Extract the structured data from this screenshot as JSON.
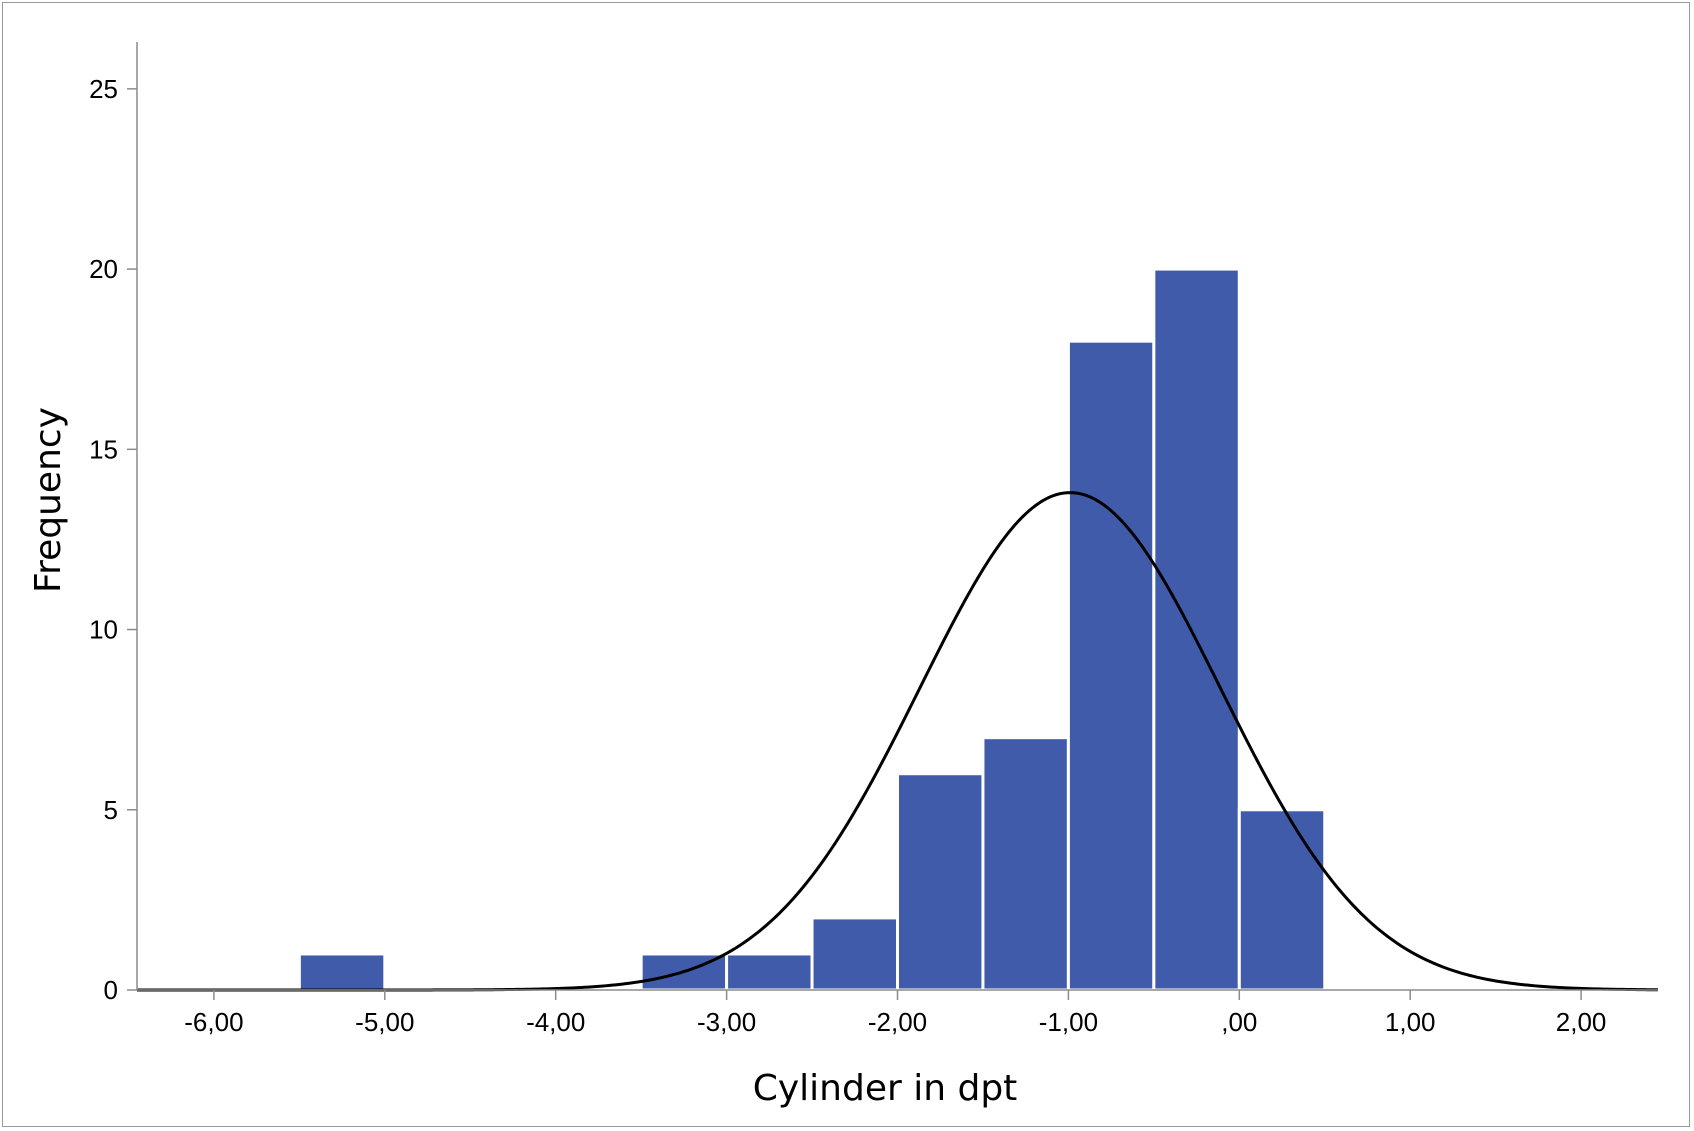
{
  "chart_data": {
    "type": "bar",
    "subtype": "histogram",
    "xlabel": "Cylinder in dpt",
    "ylabel": "Frequency",
    "xlim": [
      -6.45,
      2.45
    ],
    "ylim": [
      0,
      26.3
    ],
    "x_ticks": [
      {
        "value": -6,
        "label": "-6,00"
      },
      {
        "value": -5,
        "label": "-5,00"
      },
      {
        "value": -4,
        "label": "-4,00"
      },
      {
        "value": -3,
        "label": "-3,00"
      },
      {
        "value": -2,
        "label": "-2,00"
      },
      {
        "value": -1,
        "label": "-1,00"
      },
      {
        "value": 0,
        "label": ",00"
      },
      {
        "value": 1,
        "label": "1,00"
      },
      {
        "value": 2,
        "label": "2,00"
      }
    ],
    "y_ticks": [
      {
        "value": 0,
        "label": "0"
      },
      {
        "value": 5,
        "label": "5"
      },
      {
        "value": 10,
        "label": "10"
      },
      {
        "value": 15,
        "label": "15"
      },
      {
        "value": 20,
        "label": "20"
      },
      {
        "value": 25,
        "label": "25"
      }
    ],
    "bins": [
      {
        "start": -5.5,
        "end": -5.0,
        "count": 1
      },
      {
        "start": -5.0,
        "end": -4.5,
        "count": 0
      },
      {
        "start": -4.5,
        "end": -4.0,
        "count": 0
      },
      {
        "start": -4.0,
        "end": -3.5,
        "count": 0
      },
      {
        "start": -3.5,
        "end": -3.0,
        "count": 1
      },
      {
        "start": -3.0,
        "end": -2.5,
        "count": 1
      },
      {
        "start": -2.5,
        "end": -2.0,
        "count": 2
      },
      {
        "start": -2.0,
        "end": -1.5,
        "count": 6
      },
      {
        "start": -1.5,
        "end": -1.0,
        "count": 7
      },
      {
        "start": -1.0,
        "end": -0.5,
        "count": 18
      },
      {
        "start": -0.5,
        "end": 0.0,
        "count": 20
      },
      {
        "start": 0.0,
        "end": 0.5,
        "count": 5
      }
    ],
    "normal_curve": {
      "mean": -0.99,
      "std_dev": 0.88,
      "n": 61,
      "bin_width": 0.5,
      "peak": 13.8
    },
    "grid": false,
    "colors": {
      "bar_fill": "#3f5ba9",
      "bar_edge": "#ffffff",
      "curve": "#000000",
      "axis": "#8c8c8c"
    }
  }
}
